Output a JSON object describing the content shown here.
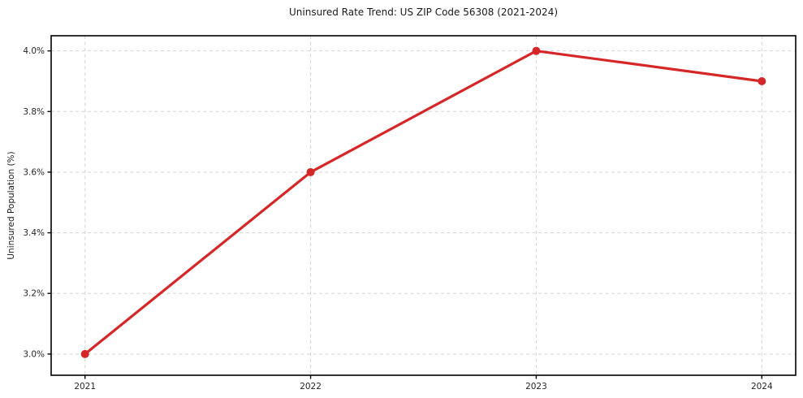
{
  "chart_data": {
    "type": "line",
    "title": "Uninsured Rate Trend: US ZIP Code 56308 (2021-2024)",
    "xlabel": "",
    "ylabel": "Uninsured Population (%)",
    "x": [
      2021,
      2022,
      2023,
      2024
    ],
    "x_tick_labels": [
      "2021",
      "2022",
      "2023",
      "2024"
    ],
    "y_ticks": [
      3.0,
      3.2,
      3.4,
      3.6,
      3.8,
      4.0
    ],
    "y_tick_labels": [
      "3.0%",
      "3.2%",
      "3.4%",
      "3.6%",
      "3.8%",
      "4.0%"
    ],
    "series": [
      {
        "name": "Uninsured Population (%)",
        "values": [
          3.0,
          3.6,
          4.0,
          3.9
        ],
        "color": "#d62728",
        "marker": "circle"
      }
    ],
    "xlim": [
      2020.85,
      2024.15
    ],
    "ylim": [
      2.93,
      4.05
    ],
    "grid": true,
    "grid_style": "dashed",
    "legend_position": "none",
    "colors": {
      "line": "#d62728",
      "grid": "#d4d4d4",
      "spine": "#000000",
      "tick_label": "#262626",
      "background": "#ffffff"
    }
  }
}
